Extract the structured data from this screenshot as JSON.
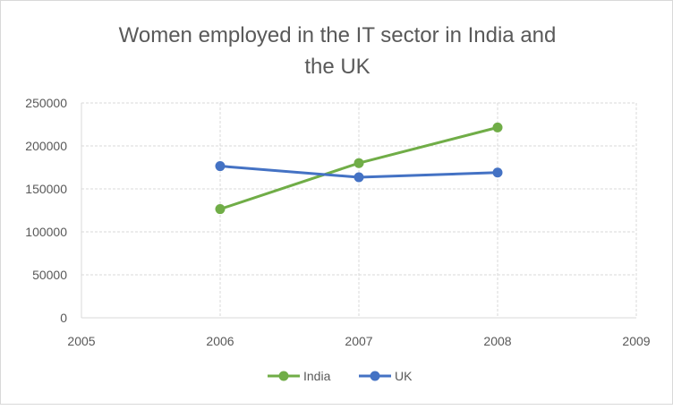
{
  "chart_data": {
    "type": "scatter",
    "title": "Women employed in the IT sector in India and the UK",
    "title_lines": [
      "Women employed in the IT sector in India and",
      "the UK"
    ],
    "xlabel": "",
    "ylabel": "",
    "xlim": [
      2005,
      2009
    ],
    "ylim": [
      0,
      250000
    ],
    "x_ticks": [
      "2005",
      "2006",
      "2007",
      "2008",
      "2009"
    ],
    "y_ticks": [
      "0",
      "50000",
      "100000",
      "150000",
      "200000",
      "250000"
    ],
    "grid": true,
    "legend_position": "bottom",
    "series": [
      {
        "name": "India",
        "color": "#70ad47",
        "x": [
          2006,
          2007,
          2008
        ],
        "y": [
          126500,
          180000,
          221500
        ]
      },
      {
        "name": "UK",
        "color": "#4472c4",
        "x": [
          2006,
          2007,
          2008
        ],
        "y": [
          176500,
          163500,
          169000
        ]
      }
    ]
  }
}
